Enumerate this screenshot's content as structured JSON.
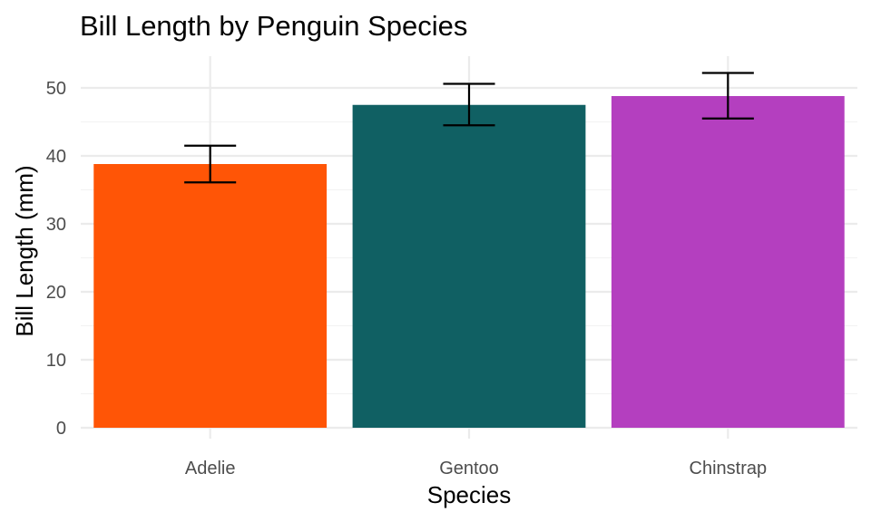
{
  "chart_data": {
    "type": "bar",
    "title": "Bill Length by Penguin Species",
    "xlabel": "Species",
    "ylabel": "Bill Length (mm)",
    "categories": [
      "Adelie",
      "Gentoo",
      "Chinstrap"
    ],
    "values": [
      38.8,
      47.5,
      48.8
    ],
    "error_bars": [
      {
        "low": 36.1,
        "high": 41.5
      },
      {
        "low": 44.5,
        "high": 50.6
      },
      {
        "low": 45.5,
        "high": 52.2
      }
    ],
    "colors": [
      "#ff5506",
      "#106063",
      "#b43fbf"
    ],
    "ylim": [
      0,
      54.8
    ],
    "yticks": [
      0,
      10,
      20,
      30,
      40,
      50
    ],
    "grid": true,
    "legend": "none"
  }
}
